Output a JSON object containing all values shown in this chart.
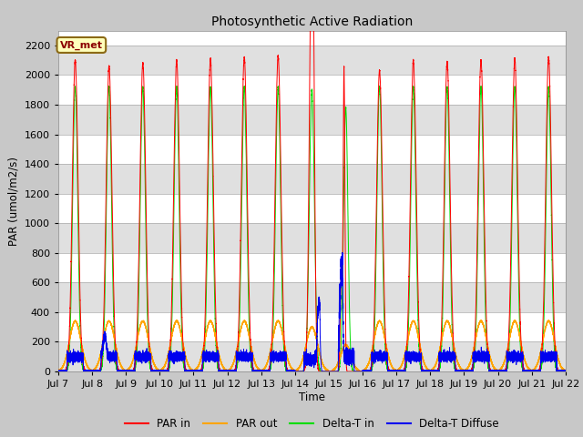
{
  "title": "Photosynthetic Active Radiation",
  "ylabel": "PAR (umol/m2/s)",
  "xlabel": "Time",
  "legend_label": "VR_met",
  "ylim": [
    0,
    2300
  ],
  "xlim_start": 7,
  "xlim_end": 22,
  "colors": {
    "PAR_in": "#ff0000",
    "PAR_out": "#ffa500",
    "Delta_T_in": "#00dd00",
    "Delta_T_Diffuse": "#0000ee"
  },
  "legend_entries": [
    "PAR in",
    "PAR out",
    "Delta-T in",
    "Delta-T Diffuse"
  ],
  "x_tick_labels": [
    "Jul 7",
    "Jul 8",
    "Jul 9",
    "Jul 10",
    "Jul 11",
    "Jul 12",
    "Jul 13",
    "Jul 14",
    "Jul 15",
    "Jul 16",
    "Jul 17",
    "Jul 18",
    "Jul 19",
    "Jul 20",
    "Jul 21",
    "Jul 22"
  ],
  "yticks": [
    0,
    200,
    400,
    600,
    800,
    1000,
    1200,
    1400,
    1600,
    1800,
    2000,
    2200
  ]
}
